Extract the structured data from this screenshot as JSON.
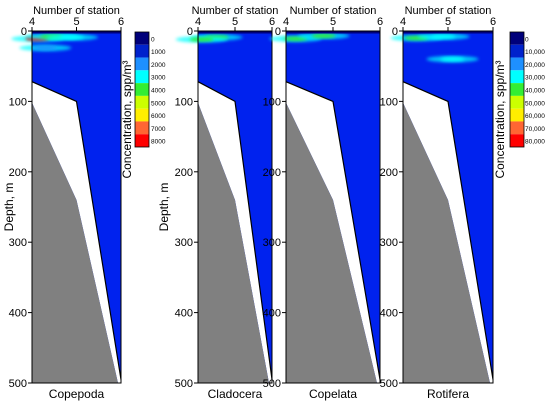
{
  "chart_data": [
    {
      "type": "heatmap",
      "title": "Copepoda",
      "x_axis_label": "Number of station",
      "y_axis_label": "Depth, m",
      "x_ticks": [
        4,
        5,
        6
      ],
      "y_ticks": [
        0,
        100,
        200,
        300,
        400,
        500
      ],
      "xlim": [
        4,
        6
      ],
      "ylim": [
        500,
        0
      ],
      "bottom_profile": [
        [
          4.0,
          72
        ],
        [
          5.0,
          100
        ],
        [
          6.0,
          495
        ]
      ],
      "colorbar": {
        "label": "Concentration, spp/m³",
        "levels": [
          "0",
          "1000",
          "2000",
          "3000",
          "4000",
          "5000",
          "6000",
          "7000",
          "8000"
        ],
        "colors": [
          "#00007a",
          "#0022cc",
          "#1e90ff",
          "#00ffff",
          "#33ee33",
          "#ccff00",
          "#ffee00",
          "#ff6633",
          "#ff0000"
        ]
      },
      "hotspots": [
        {
          "station": 4.12,
          "depth": 11,
          "level": "8000"
        },
        {
          "station": 4.45,
          "depth": 8,
          "level": "4000"
        },
        {
          "station": 4.9,
          "depth": 9,
          "level": "3000"
        },
        {
          "station": 4.3,
          "depth": 24,
          "level": "2000"
        }
      ]
    },
    {
      "type": "heatmap",
      "title": "Cladocera",
      "x_axis_label": "Number of station",
      "y_axis_label": "Depth, m",
      "x_ticks": [
        4,
        5,
        6
      ],
      "y_ticks": [
        0,
        100,
        200,
        300,
        400,
        500
      ],
      "xlim": [
        4,
        6
      ],
      "ylim": [
        500,
        0
      ],
      "bottom_profile": [
        [
          4.0,
          72
        ],
        [
          5.0,
          100
        ],
        [
          6.0,
          495
        ]
      ],
      "hotspots": [
        {
          "station": 4.5,
          "depth": 9,
          "level": "5000"
        },
        {
          "station": 4.1,
          "depth": 12,
          "level": "4000"
        }
      ]
    },
    {
      "type": "heatmap",
      "title": "Copelata",
      "x_axis_label": "Number of station",
      "x_ticks": [
        4,
        5,
        6
      ],
      "y_ticks": [
        0,
        100,
        200,
        300,
        400,
        500
      ],
      "xlim": [
        4,
        6
      ],
      "ylim": [
        500,
        0
      ],
      "bottom_profile": [
        [
          4.0,
          72
        ],
        [
          5.0,
          100
        ],
        [
          6.0,
          495
        ]
      ],
      "hotspots": [
        {
          "station": 4.2,
          "depth": 11,
          "level": "3000"
        },
        {
          "station": 4.8,
          "depth": 7,
          "level": "2000"
        }
      ]
    },
    {
      "type": "heatmap",
      "title": "Rotifera",
      "x_axis_label": "Number of station",
      "x_ticks": [
        4,
        5,
        6
      ],
      "y_ticks": [
        0,
        100,
        200,
        300,
        400,
        500
      ],
      "xlim": [
        4,
        6
      ],
      "ylim": [
        500,
        0
      ],
      "bottom_profile": [
        [
          4.0,
          72
        ],
        [
          5.0,
          100
        ],
        [
          6.0,
          495
        ]
      ],
      "colorbar": {
        "label": "Concentration, spp/m³",
        "levels": [
          "0",
          "10,000",
          "20,000",
          "30,000",
          "40,000",
          "50,000",
          "60,000",
          "70,000",
          "80,000"
        ],
        "colors": [
          "#00007a",
          "#0022cc",
          "#1e90ff",
          "#00ffff",
          "#33ee33",
          "#ccff00",
          "#ffee00",
          "#ff6633",
          "#ff0000"
        ]
      },
      "hotspots": [
        {
          "station": 4.3,
          "depth": 10,
          "level": "40,000"
        },
        {
          "station": 4.9,
          "depth": 8,
          "level": "30,000"
        },
        {
          "station": 5.1,
          "depth": 40,
          "level": "30,000"
        }
      ]
    }
  ]
}
